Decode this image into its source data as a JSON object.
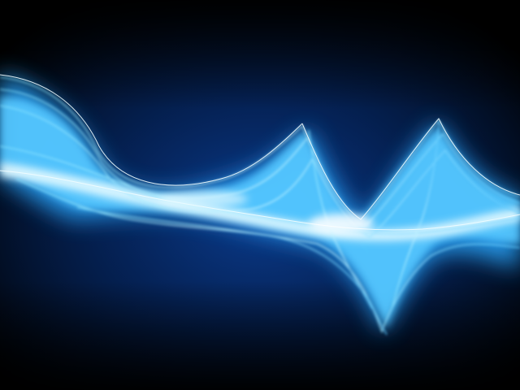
{
  "colors": {
    "background_dark": "#000000",
    "background_glow": "#0a3a8a",
    "wave_core": "#e8fbff",
    "wave_bright": "#7fe0ff",
    "wave_mid": "#2bb2ff",
    "wave_deep": "#1560d8"
  }
}
